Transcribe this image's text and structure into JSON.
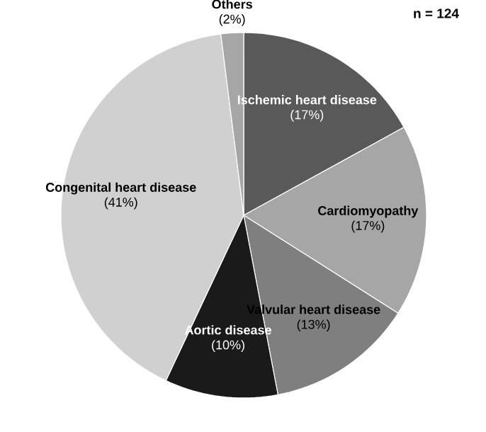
{
  "chart_data": {
    "type": "pie",
    "categories": [
      "Ischemic heart disease",
      "Cardiomyopathy",
      "Valvular heart disease",
      "Aortic disease",
      "Congenital heart disease",
      "Others"
    ],
    "values": [
      17,
      17,
      13,
      10,
      41,
      2
    ],
    "value_labels": [
      "(17%)",
      "(17%)",
      "(13%)",
      "(10%)",
      "(41%)",
      "(2%)"
    ],
    "colors": [
      "#595959",
      "#a6a6a6",
      "#7f7f7f",
      "#1a1a1a",
      "#d0d0d0",
      "#a6a6a6"
    ],
    "annotations": [
      "n = 124"
    ]
  }
}
